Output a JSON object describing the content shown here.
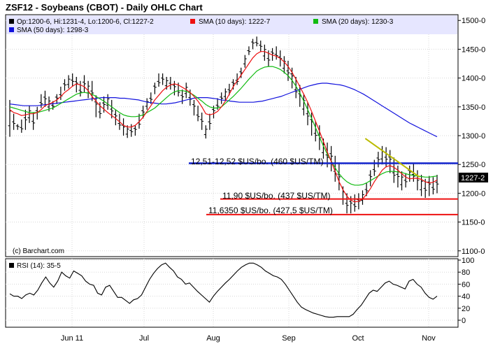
{
  "chart_data": [
    {
      "type": "ohlc",
      "title": "ZSF12 - Soybeans (CBOT) - Daily OHLC Chart",
      "legend": {
        "ohlc": "Op:1200-6, Hi:1231-4, Lo:1200-6, Cl:1227-2",
        "sma10": "SMA (10 days): 1222-7",
        "sma20": "SMA (20 days): 1230-3",
        "sma50": "SMA (50 days): 1298-3"
      },
      "colors": {
        "sma10": "#ee1111",
        "sma20": "#11bb11",
        "sma50": "#1111dd",
        "hline_blue": "#1122cc",
        "hline_red": "#ee1111",
        "trend": "#bbbb00",
        "legend_bg": "#e6e6ff",
        "last_tag": "#000000"
      },
      "y_ticks": [
        "1500-0",
        "1450-0",
        "1400-0",
        "1350-0",
        "1300-0",
        "1250-0",
        "1200-0",
        "1150-0",
        "1100-0"
      ],
      "y_tick_values": [
        1500,
        1450,
        1400,
        1350,
        1300,
        1250,
        1200,
        1150,
        1100
      ],
      "ylim": [
        1090,
        1510
      ],
      "x_labels": [
        "Jun 11",
        "Jul",
        "Aug",
        "Sep",
        "Oct",
        "Nov"
      ],
      "last_price_label": "1227-2",
      "last_price": 1227.25,
      "ohlc_highs": [
        1362,
        1338,
        1320,
        1328,
        1345,
        1352,
        1340,
        1350,
        1372,
        1378,
        1368,
        1360,
        1372,
        1385,
        1398,
        1405,
        1408,
        1402,
        1395,
        1405,
        1395,
        1395,
        1370,
        1358,
        1368,
        1372,
        1362,
        1345,
        1338,
        1330,
        1318,
        1320,
        1318,
        1338,
        1352,
        1365,
        1375,
        1392,
        1408,
        1408,
        1402,
        1402,
        1395,
        1392,
        1380,
        1392,
        1380,
        1362,
        1352,
        1340,
        1318,
        1338,
        1352,
        1365,
        1375,
        1382,
        1390,
        1398,
        1408,
        1418,
        1440,
        1455,
        1468,
        1472,
        1465,
        1458,
        1448,
        1452,
        1455,
        1448,
        1438,
        1430,
        1418,
        1402,
        1388,
        1372,
        1358,
        1340,
        1325,
        1318,
        1295,
        1288,
        1282,
        1265,
        1252,
        1212,
        1200,
        1195,
        1198,
        1200,
        1205,
        1218,
        1240,
        1258,
        1272,
        1282,
        1280,
        1275,
        1262,
        1248,
        1238,
        1235,
        1248,
        1252,
        1240,
        1232,
        1225,
        1230,
        1228,
        1232
      ],
      "ohlc_lows": [
        1298,
        1310,
        1310,
        1305,
        1310,
        1322,
        1310,
        1328,
        1348,
        1350,
        1342,
        1345,
        1355,
        1362,
        1378,
        1382,
        1385,
        1375,
        1368,
        1375,
        1365,
        1360,
        1332,
        1330,
        1340,
        1345,
        1330,
        1318,
        1310,
        1300,
        1296,
        1298,
        1300,
        1312,
        1330,
        1345,
        1355,
        1372,
        1385,
        1388,
        1380,
        1380,
        1370,
        1368,
        1355,
        1365,
        1352,
        1335,
        1325,
        1310,
        1295,
        1310,
        1330,
        1345,
        1355,
        1362,
        1370,
        1380,
        1388,
        1400,
        1418,
        1440,
        1450,
        1455,
        1445,
        1430,
        1420,
        1430,
        1432,
        1420,
        1408,
        1395,
        1382,
        1365,
        1350,
        1335,
        1318,
        1300,
        1290,
        1275,
        1260,
        1245,
        1238,
        1220,
        1205,
        1180,
        1165,
        1165,
        1168,
        1172,
        1180,
        1195,
        1212,
        1230,
        1245,
        1250,
        1245,
        1235,
        1218,
        1210,
        1205,
        1210,
        1220,
        1220,
        1205,
        1195,
        1192,
        1195,
        1198,
        1200
      ],
      "sma10": [
        1345,
        1340,
        1338,
        1335,
        1336,
        1338,
        1338,
        1340,
        1345,
        1352,
        1355,
        1358,
        1362,
        1368,
        1375,
        1380,
        1386,
        1390,
        1388,
        1385,
        1378,
        1368,
        1360,
        1352,
        1346,
        1340,
        1335,
        1330,
        1324,
        1318,
        1315,
        1315,
        1318,
        1324,
        1332,
        1342,
        1352,
        1362,
        1370,
        1378,
        1384,
        1388,
        1390,
        1388,
        1384,
        1380,
        1375,
        1368,
        1360,
        1350,
        1338,
        1336,
        1338,
        1342,
        1350,
        1360,
        1372,
        1385,
        1395,
        1405,
        1415,
        1425,
        1435,
        1442,
        1446,
        1446,
        1443,
        1440,
        1438,
        1434,
        1428,
        1420,
        1410,
        1398,
        1385,
        1372,
        1358,
        1342,
        1325,
        1308,
        1290,
        1272,
        1255,
        1238,
        1220,
        1206,
        1195,
        1188,
        1185,
        1186,
        1190,
        1198,
        1208,
        1220,
        1230,
        1240,
        1246,
        1248,
        1245,
        1240,
        1234,
        1228,
        1225,
        1226,
        1226,
        1224,
        1220,
        1218,
        1219,
        1223
      ],
      "sma20": [
        1350,
        1348,
        1346,
        1344,
        1342,
        1340,
        1340,
        1340,
        1342,
        1344,
        1346,
        1348,
        1352,
        1356,
        1360,
        1364,
        1368,
        1372,
        1374,
        1375,
        1374,
        1372,
        1368,
        1364,
        1360,
        1355,
        1350,
        1345,
        1340,
        1336,
        1334,
        1333,
        1333,
        1334,
        1336,
        1340,
        1344,
        1348,
        1354,
        1360,
        1366,
        1372,
        1376,
        1378,
        1378,
        1377,
        1374,
        1370,
        1365,
        1360,
        1354,
        1350,
        1348,
        1348,
        1350,
        1356,
        1362,
        1368,
        1375,
        1382,
        1390,
        1398,
        1405,
        1412,
        1416,
        1419,
        1420,
        1420,
        1418,
        1415,
        1410,
        1404,
        1396,
        1386,
        1374,
        1360,
        1345,
        1330,
        1314,
        1298,
        1282,
        1268,
        1256,
        1244,
        1234,
        1226,
        1220,
        1216,
        1214,
        1214,
        1215,
        1218,
        1222,
        1226,
        1230,
        1234,
        1237,
        1238,
        1238,
        1237,
        1236,
        1234,
        1232,
        1231,
        1230,
        1229,
        1228,
        1228,
        1229,
        1230
      ],
      "sma50": [
        1355,
        1354,
        1353,
        1352,
        1352,
        1352,
        1352,
        1353,
        1354,
        1355,
        1356,
        1357,
        1358,
        1359,
        1360,
        1361,
        1362,
        1363,
        1364,
        1365,
        1366,
        1366,
        1366,
        1366,
        1365,
        1365,
        1364,
        1363,
        1362,
        1360,
        1358,
        1357,
        1356,
        1355,
        1355,
        1356,
        1357,
        1359,
        1361,
        1363,
        1365,
        1366,
        1366,
        1366,
        1365,
        1364,
        1362,
        1361,
        1360,
        1359,
        1358,
        1358,
        1358,
        1358,
        1359,
        1360,
        1362,
        1364,
        1366,
        1368,
        1371,
        1374,
        1377,
        1380,
        1383,
        1386,
        1388,
        1390,
        1391,
        1391,
        1390,
        1389,
        1388,
        1386,
        1383,
        1380,
        1376,
        1372,
        1367,
        1362,
        1357,
        1352,
        1347,
        1342,
        1337,
        1332,
        1327,
        1322,
        1318,
        1314,
        1310,
        1306,
        1302,
        1298
      ],
      "rsi_label": "RSI (14): 35-5",
      "rsi_ticks": [
        "100",
        "80",
        "60",
        "40",
        "20",
        "0"
      ],
      "rsi_tick_values": [
        100,
        80,
        60,
        40,
        20,
        0
      ],
      "rsi": [
        44,
        40,
        40,
        36,
        42,
        45,
        42,
        50,
        62,
        72,
        62,
        55,
        65,
        80,
        74,
        70,
        82,
        78,
        74,
        65,
        60,
        58,
        45,
        42,
        55,
        58,
        48,
        38,
        38,
        33,
        28,
        34,
        36,
        42,
        55,
        68,
        78,
        86,
        92,
        95,
        88,
        82,
        72,
        68,
        60,
        62,
        55,
        48,
        42,
        36,
        30,
        40,
        48,
        55,
        62,
        68,
        75,
        82,
        88,
        92,
        95,
        95,
        92,
        88,
        82,
        78,
        74,
        72,
        68,
        60,
        50,
        40,
        30,
        22,
        18,
        15,
        12,
        10,
        8,
        6,
        5,
        5,
        6,
        6,
        6,
        6,
        10,
        18,
        25,
        35,
        45,
        50,
        48,
        55,
        62,
        65,
        60,
        58,
        55,
        52,
        65,
        68,
        60,
        55,
        45,
        38,
        35,
        40
      ],
      "annotations": [
        {
          "label": "12,51-12,52 $US/bo. (460 $US/TM)",
          "price": 1252,
          "color": "blue"
        },
        {
          "label": "11,90 $US/bo. (437 $US/TM)",
          "price": 1190,
          "color": "red"
        },
        {
          "label": "11,6350 $US/bo. (427,5 $US/TM)",
          "price": 1163,
          "color": "red"
        }
      ],
      "trendline": {
        "x_start": 0.795,
        "price_start": 1295,
        "x_end": 0.915,
        "price_end": 1228
      },
      "watermark": "(c) Barchart.com"
    }
  ]
}
